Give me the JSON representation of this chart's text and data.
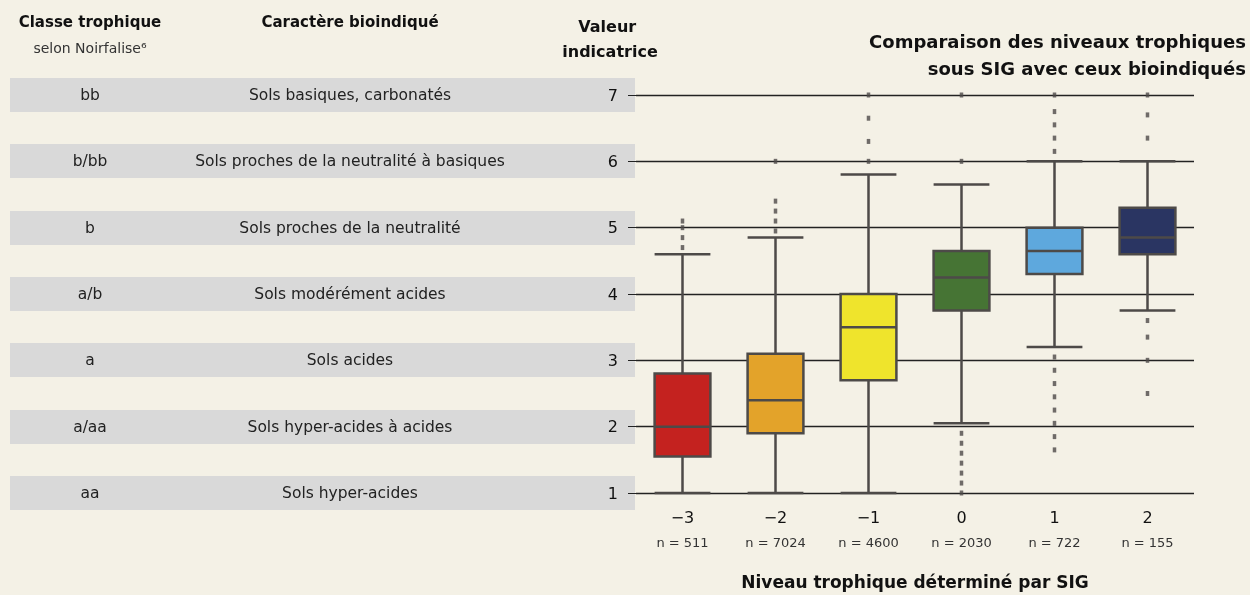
{
  "chart_data": [
    {
      "type": "other",
      "annotations": [
        "Classe trophique",
        "selon Noirfalise⁶",
        "Caractère bioindiqué",
        "bb",
        "Sols basiques, carbonatés",
        "b/bb",
        "Sols proches de la neutralité à basiques",
        "b",
        "Sols proches de la neutralité",
        "a/b",
        "Sols modérément acides",
        "a",
        "Sols acides",
        "a/aa",
        "Sols hyper-acides à acides",
        "aa",
        "Sols hyper-acides"
      ]
    },
    {
      "type": "box",
      "title": "Comparaison des niveaux trophiques\nsous SIG avec ceux bioindiqués",
      "ylabel": "Valeur indicatrice",
      "xlabel": "Niveau trophique déterminé par SIG",
      "categories": [
        "−3",
        "−2",
        "−1",
        "0",
        "1",
        "2"
      ],
      "colors": [
        "#c4221f",
        "#e3a32a",
        "#efe42c",
        "#467434",
        "#5ea8dd",
        "#2a3562"
      ],
      "boxes": [
        {
          "low": 1,
          "q1": 1.55,
          "median": 2.0,
          "q3": 2.8,
          "high": 4.6,
          "outliers": [
            4.7,
            4.85,
            5.0,
            5.1
          ]
        },
        {
          "low": 1,
          "q1": 1.9,
          "median": 2.4,
          "q3": 3.1,
          "high": 4.85,
          "outliers": [
            4.95,
            5.1,
            5.25,
            5.4,
            6.0
          ]
        },
        {
          "low": 1,
          "q1": 2.7,
          "median": 3.5,
          "q3": 4.0,
          "high": 5.8,
          "outliers": [
            6.0,
            6.3,
            6.65,
            7.0
          ]
        },
        {
          "low": 2.05,
          "q1": 3.75,
          "median": 4.25,
          "q3": 4.65,
          "high": 5.65,
          "outliers": [
            1.0,
            1.15,
            1.3,
            1.45,
            1.6,
            1.75,
            1.9,
            6.0,
            7.0
          ]
        },
        {
          "low": 3.2,
          "q1": 4.3,
          "median": 4.65,
          "q3": 5.0,
          "high": 6.0,
          "outliers": [
            1.65,
            1.85,
            2.05,
            2.25,
            2.45,
            2.65,
            2.85,
            3.05,
            6.15,
            6.35,
            6.55,
            6.75,
            7.0
          ]
        },
        {
          "low": 3.75,
          "q1": 4.6,
          "median": 4.85,
          "q3": 5.3,
          "high": 6.0,
          "outliers": [
            2.5,
            3.0,
            3.35,
            3.6,
            6.35,
            6.7,
            7.0
          ]
        }
      ],
      "ylim": [
        1,
        7
      ],
      "yticks": [
        1,
        2,
        3,
        4,
        5,
        6,
        7
      ],
      "grid": "y",
      "annotations": [
        "n = 511",
        "n = 7024",
        "n = 4600",
        "n = 2030",
        "n = 722",
        "n = 155"
      ]
    }
  ]
}
